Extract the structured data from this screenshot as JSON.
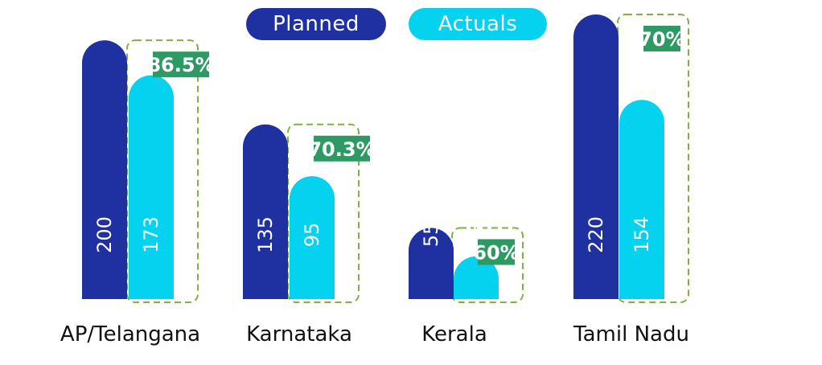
{
  "colors": {
    "planned": "#1f31a0",
    "actuals": "#04d2ee",
    "percent_badge": "#2e9a63",
    "percent_text": "#ffffff",
    "dashed_box": "#7cb342",
    "category_text": "#111111"
  },
  "legend": {
    "planned_label": "Planned",
    "actuals_label": "Actuals"
  },
  "chart_data": {
    "type": "bar",
    "categories": [
      "AP/Telangana",
      "Karnataka",
      "Kerala",
      "Tamil Nadu"
    ],
    "series": [
      {
        "name": "Planned",
        "values": [
          200,
          135,
          55,
          220
        ]
      },
      {
        "name": "Actuals",
        "values": [
          173,
          95,
          33,
          154
        ]
      }
    ],
    "percent_labels": [
      "86.5%",
      "70.3%",
      "60%",
      "70%"
    ],
    "title": "",
    "xlabel": "",
    "ylabel": "",
    "ylim": [
      0,
      220
    ],
    "grid": false,
    "legend_position": "top-center"
  }
}
